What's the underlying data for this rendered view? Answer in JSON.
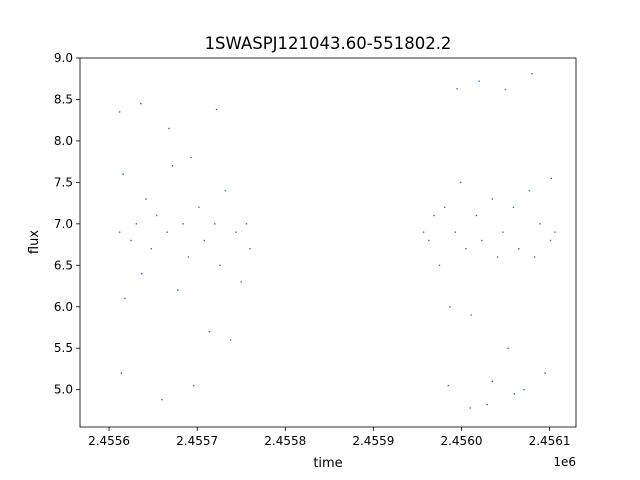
{
  "chart_data": {
    "type": "scatter",
    "title": "1SWASPJ121043.60-551802.2",
    "xlabel": "time",
    "ylabel": "flux",
    "x_offset_label": "1e6",
    "xlim": [
      2455567,
      2456130
    ],
    "ylim": [
      4.55,
      9.0
    ],
    "xticks": [
      2455600,
      2455700,
      2455800,
      2455900,
      2456000,
      2456100
    ],
    "xtick_labels": [
      "2.4556",
      "2.4557",
      "2.4558",
      "2.4559",
      "2.4560",
      "2.4561"
    ],
    "yticks": [
      5.0,
      5.5,
      6.0,
      6.5,
      7.0,
      7.5,
      8.0,
      8.5,
      9.0
    ],
    "ytick_labels": [
      "5.0",
      "5.5",
      "6.0",
      "6.5",
      "7.0",
      "7.5",
      "8.0",
      "8.5",
      "9.0"
    ],
    "grid": false,
    "legend": "none",
    "marker_color": "#1f77b4",
    "series": [
      {
        "x": [
          2455612,
          2455614,
          2455616,
          2455618,
          2455625,
          2455631,
          2455637,
          2455642,
          2455648,
          2455654,
          2455660,
          2455666,
          2455672,
          2455678,
          2455684,
          2455690,
          2455696,
          2455702,
          2455708,
          2455714,
          2455720,
          2455726,
          2455732,
          2455738,
          2455744,
          2455750,
          2455756,
          2455760,
          2455957,
          2455963,
          2455969,
          2455975,
          2455981,
          2455987,
          2455993,
          2455999,
          2456005,
          2456011,
          2456017,
          2456023,
          2456029,
          2456035,
          2456041,
          2456047,
          2456053,
          2456059,
          2456065,
          2456071,
          2456077,
          2456083,
          2456089,
          2456095,
          2456101,
          2456106,
          2455612,
          2455636,
          2455668,
          2455693,
          2455722,
          2455995,
          2456020,
          2456050,
          2456080,
          2456102,
          2455985,
          2456010,
          2456035,
          2456060
        ],
        "y": [
          6.9,
          5.2,
          7.6,
          6.1,
          6.8,
          7.0,
          6.4,
          7.3,
          6.7,
          7.1,
          4.88,
          6.9,
          7.7,
          6.2,
          7.0,
          6.6,
          5.05,
          7.2,
          6.8,
          5.7,
          7.0,
          6.5,
          7.4,
          5.6,
          6.9,
          6.3,
          7.0,
          6.7,
          6.9,
          6.8,
          7.1,
          6.5,
          7.2,
          6.0,
          6.9,
          7.5,
          6.7,
          5.9,
          7.1,
          6.8,
          4.82,
          7.3,
          6.6,
          6.9,
          5.5,
          7.2,
          6.7,
          5.0,
          7.4,
          6.6,
          7.0,
          5.2,
          6.8,
          6.9,
          8.35,
          8.45,
          8.15,
          7.8,
          8.38,
          8.63,
          8.72,
          8.62,
          8.81,
          7.55,
          5.05,
          4.78,
          5.1,
          4.95
        ]
      }
    ]
  }
}
